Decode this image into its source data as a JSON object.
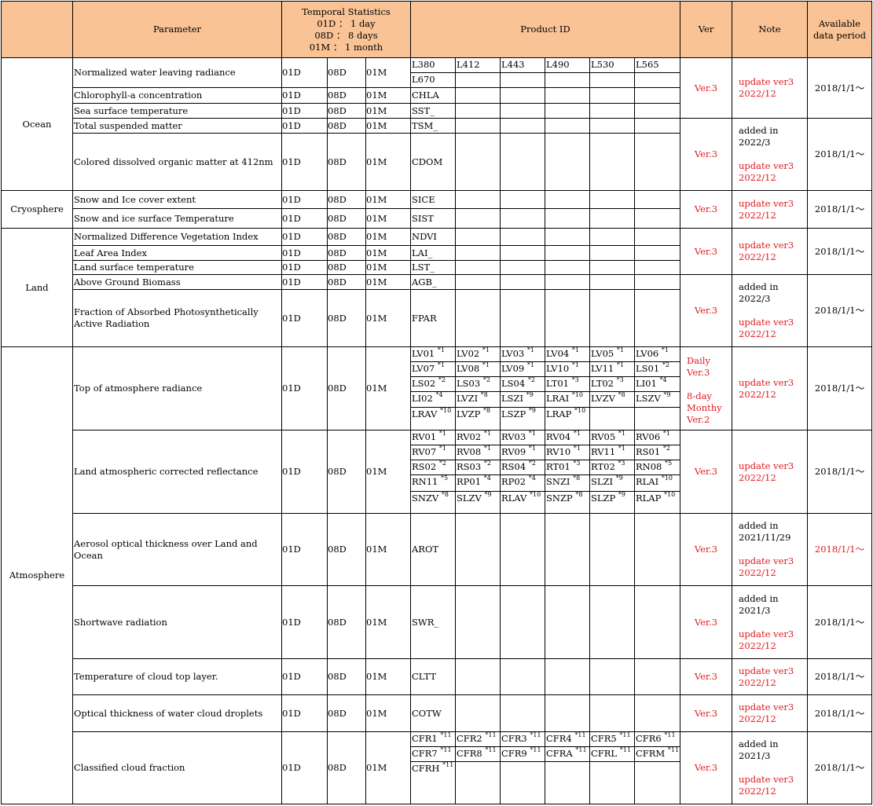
{
  "header": {
    "parameter": "Parameter",
    "temporal": "Temporal Statistics\n01D ： 1 day\n08D ： 8 days\n01M ： 1 month",
    "product_id": "Product ID",
    "ver": "Ver",
    "note": "Note",
    "available": "Available\ndata period"
  },
  "categories": [
    "Ocean",
    "Cryosphere",
    "Land",
    "Atmosphere"
  ],
  "ts": [
    "01D",
    "08D",
    "01M"
  ],
  "params": [
    "Normalized water leaving radiance",
    "Chlorophyll-a concentration",
    "Sea surface temperature",
    "Total suspended matter",
    "Colored dissolved organic matter at 412nm",
    "Snow and Ice cover extent",
    "Snow and ice surface Temperature",
    "Normalized Difference Vegetation Index",
    "Leaf Area Index",
    "Land surface temperature",
    "Above Ground Biomass",
    "Fraction of Absorbed Photosynthetically\nActive Radiation",
    "Top of atmosphere radiance",
    "Land atmospheric corrected reflectance",
    "Aerosol optical thickness over Land and\nOcean",
    "Shortwave radiation",
    "Temperature of cloud top layer.",
    "Optical thickness of water cloud droplets",
    "Classified cloud fraction"
  ],
  "pids": {
    "nwlr": [
      "L380",
      "L412",
      "L443",
      "L490",
      "L530",
      "L565",
      "L670"
    ],
    "chla": "CHLA",
    "sst": "SST_",
    "tsm": "TSM_",
    "cdom": "CDOM",
    "sice": "SICE",
    "sist": "SIST",
    "ndvi": "NDVI",
    "lai": "LAI_",
    "lst": "LST_",
    "agb": "AGB_",
    "fpar": "FPAR",
    "toa": [
      [
        "LV01",
        "*1"
      ],
      [
        "LV02",
        "*1"
      ],
      [
        "LV03",
        "*1"
      ],
      [
        "LV04",
        "*1"
      ],
      [
        "LV05",
        "*1"
      ],
      [
        "LV06",
        "*1"
      ],
      [
        "LV07",
        "*1"
      ],
      [
        "LV08",
        "*1"
      ],
      [
        "LV09",
        "*1"
      ],
      [
        "LV10",
        "*1"
      ],
      [
        "LV11",
        "*1"
      ],
      [
        "LS01",
        "*2"
      ],
      [
        "LS02",
        "*2"
      ],
      [
        "LS03",
        "*2"
      ],
      [
        "LS04",
        "*2"
      ],
      [
        "LT01",
        "*3"
      ],
      [
        "LT02",
        "*3"
      ],
      [
        "LI01",
        "*4"
      ],
      [
        "LI02",
        "*4"
      ],
      [
        "LVZI",
        "*8"
      ],
      [
        "LSZI",
        "*9"
      ],
      [
        "LRAI",
        "*10"
      ],
      [
        "LVZV",
        "*8"
      ],
      [
        "LSZV",
        "*9"
      ],
      [
        "LRAV",
        "*10"
      ],
      [
        "LVZP",
        "*8"
      ],
      [
        "LSZP",
        "*9"
      ],
      [
        "LRAP",
        "*10"
      ]
    ],
    "rsrf": [
      [
        "RV01",
        "*1"
      ],
      [
        "RV02",
        "*1"
      ],
      [
        "RV03",
        "*1"
      ],
      [
        "RV04",
        "*1"
      ],
      [
        "RV05",
        "*1"
      ],
      [
        "RV06",
        "*1"
      ],
      [
        "RV07",
        "*1"
      ],
      [
        "RV08",
        "*1"
      ],
      [
        "RV09",
        "*1"
      ],
      [
        "RV10",
        "*1"
      ],
      [
        "RV11",
        "*1"
      ],
      [
        "RS01",
        "*2"
      ],
      [
        "RS02",
        "*2"
      ],
      [
        "RS03",
        "*2"
      ],
      [
        "RS04",
        "*2"
      ],
      [
        "RT01",
        "*3"
      ],
      [
        "RT02",
        "*3"
      ],
      [
        "RN08",
        "*5"
      ],
      [
        "RN11",
        "*5"
      ],
      [
        "RP01",
        "*4"
      ],
      [
        "RP02",
        "*4"
      ],
      [
        "SNZI",
        "*8"
      ],
      [
        "SLZI",
        "*9"
      ],
      [
        "RLAI",
        "*10"
      ],
      [
        "SNZV",
        "*8"
      ],
      [
        "SLZV",
        "*9"
      ],
      [
        "RLAV",
        "*10"
      ],
      [
        "SNZP",
        "*8"
      ],
      [
        "SLZP",
        "*9"
      ],
      [
        "RLAP",
        "*10"
      ]
    ],
    "arot": "AROT",
    "swr": "SWR_",
    "cltt": "CLTT",
    "cotw": "COTW",
    "cfr": [
      [
        "CFR1",
        "*11"
      ],
      [
        "CFR2",
        "*11"
      ],
      [
        "CFR3",
        "*11"
      ],
      [
        "CFR4",
        "*11"
      ],
      [
        "CFR5",
        "*11"
      ],
      [
        "CFR6",
        "*11"
      ],
      [
        "CFR7",
        "*11"
      ],
      [
        "CFR8",
        "*11"
      ],
      [
        "CFR9",
        "*11"
      ],
      [
        "CFRA",
        "*11"
      ],
      [
        "CFRL",
        "*11"
      ],
      [
        "CFRM",
        "*11"
      ],
      [
        "CFRH",
        "*11"
      ]
    ]
  },
  "ver": {
    "v3": "Ver.3",
    "toa": "Daily\nVer.3\n\n8-day\nMonthy\nVer.2"
  },
  "notes": {
    "upd": "update ver3\n2022/12",
    "added_2022_3": "added in\n2022/3",
    "added_2021_11_29": "added in\n2021/11/29",
    "added_2021_3": "added in\n2021/3"
  },
  "period": "2018/1/1～",
  "colors": {
    "header_bg": "#f9c395",
    "red_text": "#e0191f",
    "border": "#000000"
  }
}
